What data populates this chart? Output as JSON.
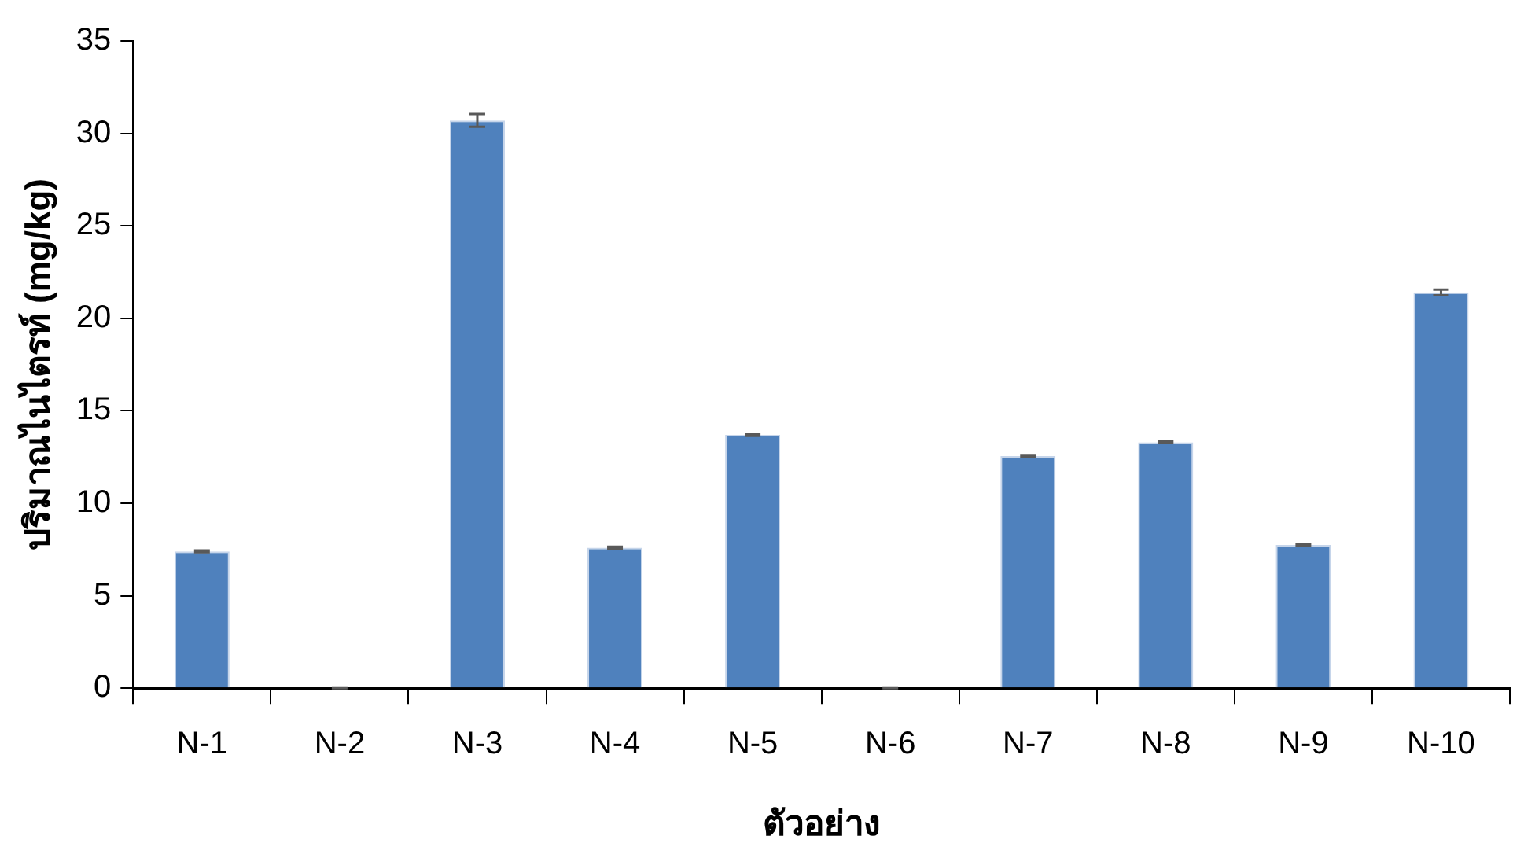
{
  "chart_data": {
    "type": "bar",
    "xlabel": "ตัวอย่าง",
    "ylabel": "ปริมาณไนไตรท์ (mg/kg)",
    "categories": [
      "N-1",
      "N-2",
      "N-3",
      "N-4",
      "N-5",
      "N-6",
      "N-7",
      "N-8",
      "N-9",
      "N-10"
    ],
    "values": [
      7.4,
      0,
      30.7,
      7.6,
      13.7,
      0,
      12.55,
      13.3,
      7.75,
      21.4
    ],
    "errors": [
      0.05,
      0,
      0.35,
      0.05,
      0.05,
      0,
      0.05,
      0.05,
      0.05,
      0.15
    ],
    "color": "#4f81bd",
    "ylim": [
      0,
      35
    ],
    "yticks": [
      0,
      5,
      10,
      15,
      20,
      25,
      30,
      35
    ],
    "grid": false,
    "legend": false
  }
}
